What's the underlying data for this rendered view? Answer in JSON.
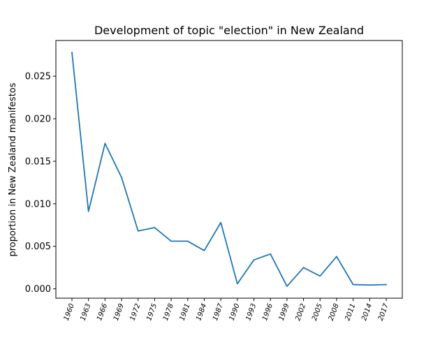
{
  "chart_data": {
    "type": "line",
    "title": "Development of topic \"election\" in New Zealand",
    "xlabel": "",
    "ylabel": "proportion in New Zealand manifestos",
    "categories": [
      "1960",
      "1963",
      "1966",
      "1969",
      "1972",
      "1975",
      "1978",
      "1981",
      "1984",
      "1987",
      "1990",
      "1993",
      "1996",
      "1999",
      "2002",
      "2005",
      "2008",
      "2011",
      "2014",
      "2017"
    ],
    "series": [
      {
        "values": [
          0.0278,
          0.0091,
          0.0171,
          0.0131,
          0.0068,
          0.0072,
          0.0056,
          0.0056,
          0.0045,
          0.0078,
          0.0006,
          0.0034,
          0.0041,
          0.0003,
          0.0025,
          0.0015,
          0.0038,
          0.0005,
          0.00045,
          0.0005
        ],
        "color": "#1f77b4"
      }
    ],
    "yticks": [
      "0.000",
      "0.005",
      "0.010",
      "0.015",
      "0.020",
      "0.025"
    ],
    "ylim": [
      -0.0011,
      0.0292
    ],
    "grid": false,
    "legend": "none"
  }
}
